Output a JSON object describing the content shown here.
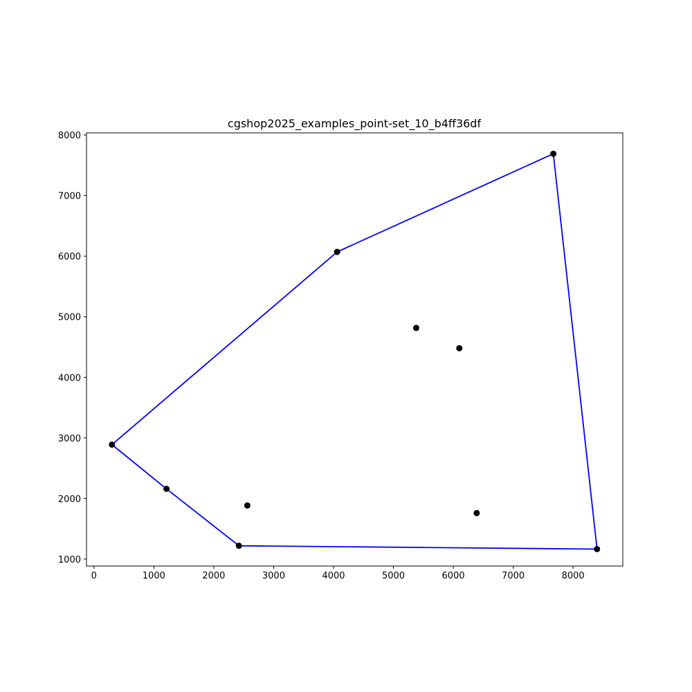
{
  "chart_data": {
    "type": "scatter",
    "title": "cgshop2025_examples_point-set_10_b4ff36df",
    "xlabel": "",
    "ylabel": "",
    "xlim": [
      -125,
      8830
    ],
    "ylim": [
      885,
      8035
    ],
    "xticks": [
      0,
      1000,
      2000,
      3000,
      4000,
      5000,
      6000,
      7000,
      8000
    ],
    "yticks": [
      1000,
      2000,
      3000,
      4000,
      5000,
      6000,
      7000,
      8000
    ],
    "grid": false,
    "points": [
      {
        "x": 300,
        "y": 2890
      },
      {
        "x": 1210,
        "y": 2160
      },
      {
        "x": 2420,
        "y": 1220
      },
      {
        "x": 2560,
        "y": 1885
      },
      {
        "x": 4060,
        "y": 6070
      },
      {
        "x": 5380,
        "y": 4815
      },
      {
        "x": 6100,
        "y": 4480
      },
      {
        "x": 6390,
        "y": 1760
      },
      {
        "x": 7670,
        "y": 7690
      },
      {
        "x": 8400,
        "y": 1165
      }
    ],
    "hull": [
      {
        "x": 300,
        "y": 2890
      },
      {
        "x": 4060,
        "y": 6070
      },
      {
        "x": 7670,
        "y": 7690
      },
      {
        "x": 8400,
        "y": 1165
      },
      {
        "x": 2420,
        "y": 1220
      },
      {
        "x": 1210,
        "y": 2160
      },
      {
        "x": 300,
        "y": 2890
      }
    ],
    "point_color": "#000000",
    "line_color": "#0000ff"
  }
}
